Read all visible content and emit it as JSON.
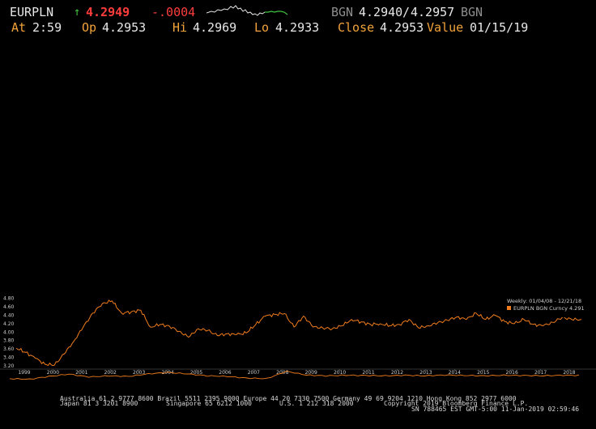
{
  "header": {
    "ticker": "EURPLN",
    "last": "4.2949",
    "change": "-.0004",
    "bid_source": "BGN",
    "bid": "4.2940",
    "ask": "4.2957",
    "ask_source": "BGN",
    "at_label": "At",
    "at_value": "2:59",
    "open_label": "Op",
    "open_value": "4.2953",
    "high_label": "Hi",
    "high_value": "4.2969",
    "low_label": "Lo",
    "low_value": "4.2933",
    "close_label": "Close",
    "close_value": "4.2953",
    "value_label": "Value",
    "value_date": "01/15/19"
  },
  "colors": {
    "background": "#000000",
    "series": "#f07c1c",
    "up_arrow": "#3ec43e",
    "last_price": "#ff3d3d",
    "labels": "#f2a33a"
  },
  "chart_data": {
    "type": "line",
    "legend_range": "Weekly: 01/04/08 - 12/21/18",
    "legend_series": "EURPLN BGN Curncy 4.291",
    "legend_placement": "top-right",
    "ylim": [
      3.2,
      4.85
    ],
    "yticks": [
      "4.80",
      "4.60",
      "4.40",
      "4.20",
      "4.00",
      "3.80",
      "3.60",
      "3.40",
      "3.20"
    ],
    "ytick_values": [
      4.8,
      4.6,
      4.4,
      4.2,
      4.0,
      3.8,
      3.6,
      3.4,
      3.2
    ],
    "x": [
      "2008-01",
      "2008-03",
      "2008-05",
      "2008-07",
      "2008-08",
      "2008-10",
      "2008-11",
      "2008-12",
      "2009-01",
      "2009-02",
      "2009-03",
      "2009-04",
      "2009-05",
      "2009-06",
      "2009-08",
      "2009-10",
      "2009-12",
      "2010-02",
      "2010-04",
      "2010-05",
      "2010-07",
      "2010-09",
      "2010-12",
      "2011-03",
      "2011-06",
      "2011-08",
      "2011-09",
      "2011-11",
      "2011-12",
      "2012-03",
      "2012-05",
      "2012-08",
      "2012-10",
      "2012-12",
      "2013-03",
      "2013-06",
      "2013-09",
      "2013-12",
      "2014-03",
      "2014-06",
      "2014-09",
      "2014-12",
      "2015-03",
      "2015-06",
      "2015-09",
      "2015-12",
      "2016-01",
      "2016-03",
      "2016-06",
      "2016-10",
      "2016-12",
      "2017-03",
      "2017-06",
      "2017-09",
      "2017-12",
      "2018-02",
      "2018-03",
      "2018-06",
      "2018-09",
      "2018-12"
    ],
    "values": [
      3.62,
      3.52,
      3.38,
      3.24,
      3.22,
      3.48,
      3.78,
      4.12,
      4.45,
      4.68,
      4.74,
      4.45,
      4.48,
      4.52,
      4.12,
      4.18,
      4.14,
      4.02,
      3.88,
      4.08,
      4.04,
      3.92,
      3.96,
      3.94,
      3.98,
      4.18,
      4.38,
      4.42,
      4.44,
      4.12,
      4.38,
      4.12,
      4.1,
      4.08,
      4.15,
      4.3,
      4.24,
      4.18,
      4.2,
      4.15,
      4.18,
      4.3,
      4.1,
      4.15,
      4.22,
      4.28,
      4.36,
      4.3,
      4.45,
      4.3,
      4.4,
      4.25,
      4.2,
      4.3,
      4.18,
      4.15,
      4.23,
      4.35,
      4.3,
      4.3
    ],
    "xtick_labels": [
      "1999",
      "2000",
      "2001",
      "2002",
      "2003",
      "2004",
      "2005",
      "2006",
      "2007",
      "2008",
      "2009",
      "2010",
      "2011",
      "2012",
      "2013",
      "2014",
      "2015",
      "2016",
      "2017",
      "2018"
    ],
    "lower_series_values": [
      0.3,
      0.25,
      0.5,
      0.7,
      0.45,
      0.55,
      0.5,
      0.72,
      0.85,
      0.72,
      0.55,
      0.5,
      0.35,
      0.3,
      0.95,
      0.62,
      0.55,
      0.6,
      0.58,
      0.55,
      0.6,
      0.55,
      0.62,
      0.58,
      0.55,
      0.6,
      0.58,
      0.56,
      0.6,
      0.58
    ]
  },
  "footer": {
    "line1": "Australia 61 2 9777 8600 Brazil 5511 2395 9000 Europe 44 20 7330 7500 Germany 49 69 9204 1210 Hong Kong 852 2977 6000",
    "line2a": "Japan 81 3 3201 8900",
    "line2b": "Singapore 65 6212 1000",
    "line2c": "U.S. 1 212 318 2000",
    "line2d": "Copyright 2019 Bloomberg Finance L.P.",
    "line3": "SN 788465 EST  GMT-5:00 11-Jan-2019 02:59:46"
  }
}
